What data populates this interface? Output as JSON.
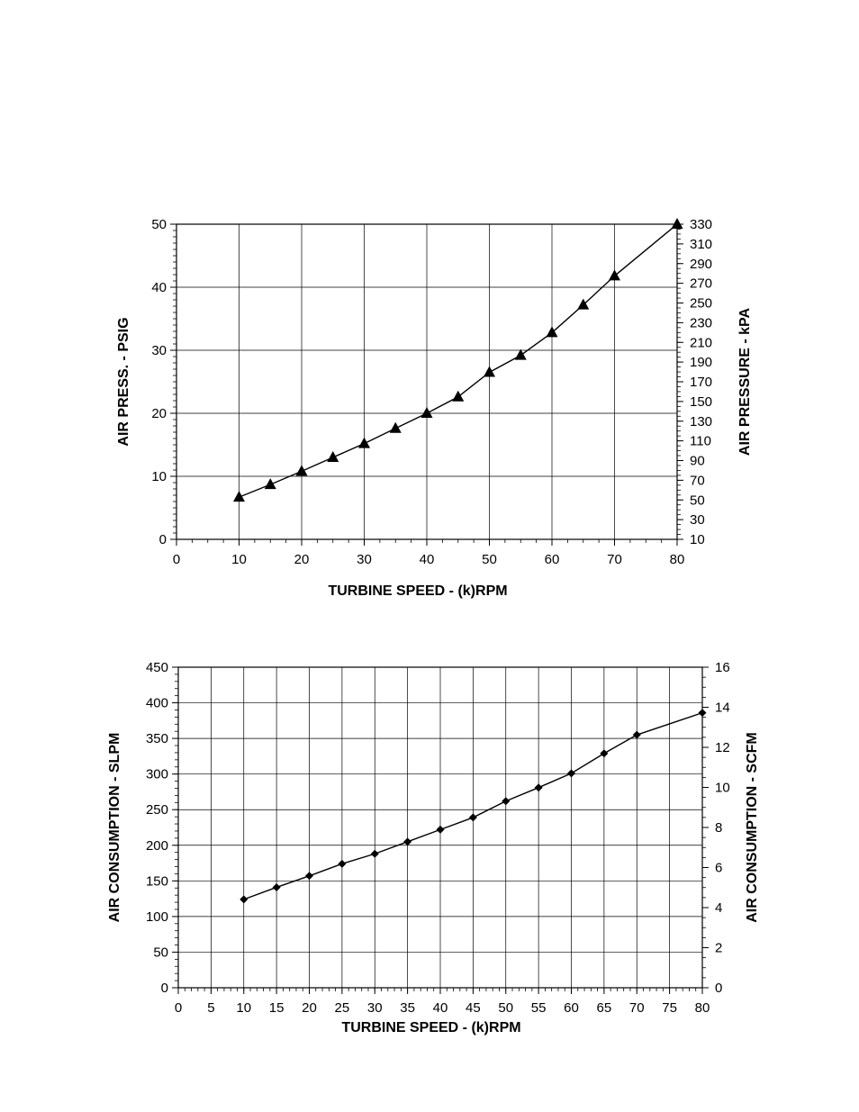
{
  "chart_data": [
    {
      "type": "line",
      "xlabel": "TURBINE SPEED - (k)RPM",
      "ylabel": "AIR PRESS. - PSIG",
      "y2label": "AIR PRESSURE - kPA",
      "xlim": [
        0,
        80
      ],
      "ylim": [
        0,
        50
      ],
      "y2lim": [
        10,
        330
      ],
      "x_ticks": [
        "0",
        "10",
        "20",
        "30",
        "40",
        "50",
        "60",
        "70",
        "80"
      ],
      "y_ticks": [
        "0",
        "10",
        "20",
        "30",
        "40",
        "50"
      ],
      "y2_ticks": [
        "10",
        "30",
        "50",
        "70",
        "90",
        "110",
        "130",
        "150",
        "170",
        "190",
        "210",
        "230",
        "250",
        "270",
        "290",
        "310",
        "330"
      ],
      "grid": true,
      "marker": "triangle",
      "series": [
        {
          "x": [
            10,
            15,
            20,
            25,
            30,
            35,
            40,
            45,
            50,
            55,
            60,
            65,
            70,
            80
          ],
          "values": [
            6.7,
            8.7,
            10.8,
            13.0,
            15.2,
            17.6,
            20.0,
            22.6,
            26.5,
            29.2,
            32.8,
            37.2,
            41.8,
            50.0
          ]
        }
      ]
    },
    {
      "type": "line",
      "xlabel": "TURBINE SPEED -  (k)RPM",
      "ylabel": "AIR CONSUMPTION - SLPM",
      "y2label": "AIR CONSUMPTION - SCFM",
      "xlim": [
        0,
        80
      ],
      "ylim": [
        0,
        450
      ],
      "y2lim": [
        0,
        16
      ],
      "x_ticks": [
        "0",
        "5",
        "10",
        "15",
        "20",
        "25",
        "30",
        "35",
        "40",
        "45",
        "50",
        "55",
        "60",
        "65",
        "70",
        "75",
        "80"
      ],
      "y_ticks": [
        "0",
        "50",
        "100",
        "150",
        "200",
        "250",
        "300",
        "350",
        "400",
        "450"
      ],
      "y2_ticks": [
        "0",
        "2",
        "4",
        "6",
        "8",
        "10",
        "12",
        "14",
        "16"
      ],
      "grid": true,
      "marker": "diamond",
      "series": [
        {
          "x": [
            10,
            15,
            20,
            25,
            30,
            35,
            40,
            45,
            50,
            55,
            60,
            65,
            70,
            80
          ],
          "values": [
            124,
            141,
            157,
            174,
            188,
            205,
            222,
            239,
            262,
            281,
            301,
            329,
            355,
            386
          ]
        }
      ]
    }
  ]
}
